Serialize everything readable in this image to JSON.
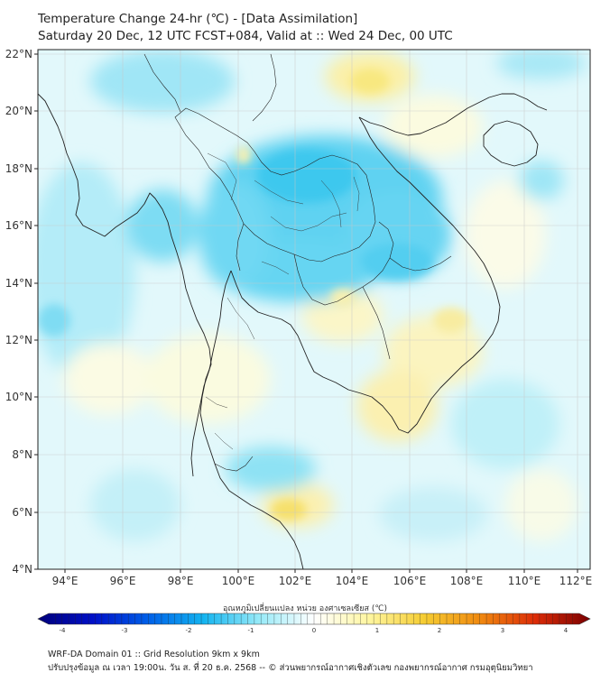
{
  "title": {
    "line1": "Temperature Change 24-hr (℃) - [Data Assimilation]",
    "line2": "Saturday 20 Dec, 12 UTC FCST+084, Valid at :: Wed 24 Dec, 00 UTC"
  },
  "map": {
    "lat_labels": [
      "22°N",
      "20°N",
      "18°N",
      "16°N",
      "14°N",
      "12°N",
      "10°N",
      "8°N",
      "6°N",
      "4°N"
    ],
    "lon_labels": [
      "94°E",
      "96°E",
      "98°E",
      "100°E",
      "102°E",
      "104°E",
      "106°E",
      "108°E",
      "110°E",
      "112°E"
    ]
  },
  "colorbar": {
    "title": "อุณหภูมิเปลี่ยนแปลง หน่วย องศาเซลเซียส (℃)",
    "ticks": [
      "-4",
      "-3",
      "-2",
      "-1",
      "0",
      "1",
      "2",
      "3",
      "4"
    ],
    "min": -4,
    "max": 4,
    "colors": [
      "#00007a",
      "#0010c8",
      "#0060e8",
      "#14b4f0",
      "#96eaf8",
      "#ffffff",
      "#fff6a0",
      "#f5cc32",
      "#f08a10",
      "#dc2c08",
      "#7a0000"
    ]
  },
  "footer": {
    "line1": "WRF-DA Domain 01 :: Grid Resolution 9km x 9km",
    "line2": "ปรับปรุงข้อมูล ณ เวลา 19:00น. วัน ส. ที่ 20 ธ.ค. 2568 -- © ส่วนพยากรณ์อากาศเชิงตัวเลข กองพยากรณ์อากาศ กรมอุตุนิยมวิทยา"
  }
}
